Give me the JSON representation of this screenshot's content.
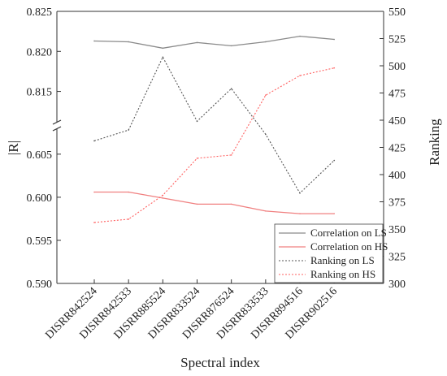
{
  "chart_data": {
    "type": "line",
    "xlabel": "Spectral index",
    "ylabel_left": "|R|",
    "ylabel_right": "Ranking",
    "categories": [
      "DISRR842524",
      "DISRR842533",
      "DISRR885524",
      "DISRR833524",
      "DISRR876524",
      "DISRR833533",
      "DISRR894516",
      "DISRR902516"
    ],
    "left_axis": {
      "broken": true,
      "lower_range": [
        0.59,
        0.608
      ],
      "upper_range": [
        0.811,
        0.825
      ],
      "lower_ticks": [
        "0.590",
        "0.595",
        "0.600",
        "0.605"
      ],
      "upper_ticks": [
        "0.815",
        "0.820",
        "0.825"
      ]
    },
    "right_axis": {
      "range": [
        300,
        550
      ],
      "ticks": [
        "300",
        "325",
        "350",
        "375",
        "400",
        "425",
        "450",
        "475",
        "500",
        "525",
        "550"
      ]
    },
    "series": [
      {
        "name": "Correlation on LS",
        "axis": "left",
        "style": "solid",
        "color": "#8a8a8a",
        "values": [
          0.8213,
          0.8212,
          0.8204,
          0.8211,
          0.8207,
          0.8212,
          0.8219,
          0.8215
        ]
      },
      {
        "name": "Correlation on HS",
        "axis": "left",
        "style": "solid",
        "color": "#f08080",
        "values": [
          0.6006,
          0.6006,
          0.5999,
          0.5992,
          0.5992,
          0.5984,
          0.5981,
          0.5981
        ]
      },
      {
        "name": "Ranking on LS",
        "axis": "right",
        "style": "dotted",
        "color": "#555555",
        "values": [
          431,
          441,
          508,
          449,
          479,
          437,
          383,
          413
        ]
      },
      {
        "name": "Ranking on HS",
        "axis": "right",
        "style": "dotted",
        "color": "#ff6060",
        "values": [
          356,
          359,
          381,
          415,
          418,
          473,
          491,
          498
        ]
      }
    ],
    "legend": {
      "position": "bottom-right"
    },
    "grid": false
  }
}
